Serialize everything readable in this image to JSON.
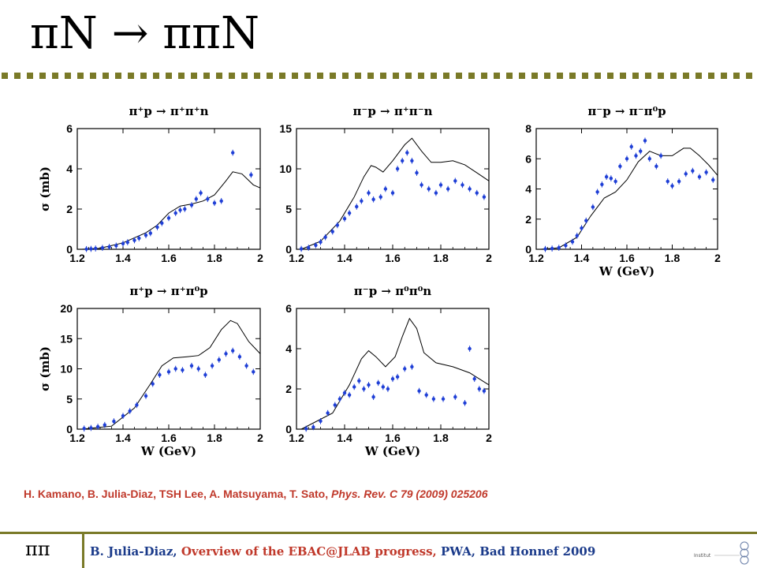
{
  "slide": {
    "title": "πN  →  ππN",
    "citation_authors": "H. Kamano, B. Julia-Diaz, TSH Lee, A. Matsuyama, T. Sato, ",
    "citation_journal": "Phys. Rev. C 79 (2009) 025206",
    "footer_symbol": "ππ",
    "footer_author": "B. Julia-Diaz, ",
    "footer_talk": "Overview of the EBAC@JLAB progress, ",
    "footer_venue": "PWA, Bad Honnef 2009",
    "logo_text": "Institut"
  },
  "colors": {
    "points": "#1f3fd6",
    "curve": "#000000",
    "rule": "#7a7a28"
  },
  "chart_data": [
    {
      "type": "scatter",
      "title": "π⁺p → π⁺π⁺n",
      "xlabel": "",
      "ylabel": "σ (mb)",
      "xlim": [
        1.2,
        2.0
      ],
      "ylim": [
        0,
        6
      ],
      "xticks": [
        1.2,
        1.4,
        1.6,
        1.8,
        2.0
      ],
      "xticklabels": [
        "1.2",
        "1.4",
        "1.6",
        "1.8",
        "2"
      ],
      "yticks": [
        0,
        2,
        4,
        6
      ],
      "yticklabels": [
        "0",
        "2",
        "4",
        "6"
      ],
      "points": [
        [
          1.24,
          0.01
        ],
        [
          1.26,
          0.02
        ],
        [
          1.28,
          0.04
        ],
        [
          1.31,
          0.07
        ],
        [
          1.34,
          0.12
        ],
        [
          1.37,
          0.18
        ],
        [
          1.4,
          0.28
        ],
        [
          1.42,
          0.35
        ],
        [
          1.45,
          0.45
        ],
        [
          1.47,
          0.55
        ],
        [
          1.5,
          0.7
        ],
        [
          1.52,
          0.8
        ],
        [
          1.55,
          1.1
        ],
        [
          1.57,
          1.3
        ],
        [
          1.6,
          1.55
        ],
        [
          1.63,
          1.8
        ],
        [
          1.65,
          1.95
        ],
        [
          1.67,
          2.0
        ],
        [
          1.7,
          2.2
        ],
        [
          1.72,
          2.5
        ],
        [
          1.74,
          2.8
        ],
        [
          1.77,
          2.5
        ],
        [
          1.8,
          2.3
        ],
        [
          1.83,
          2.4
        ],
        [
          1.88,
          4.8
        ],
        [
          1.96,
          3.7
        ]
      ],
      "model": [
        [
          1.22,
          0.0
        ],
        [
          1.3,
          0.05
        ],
        [
          1.4,
          0.32
        ],
        [
          1.5,
          0.82
        ],
        [
          1.55,
          1.2
        ],
        [
          1.6,
          1.8
        ],
        [
          1.65,
          2.15
        ],
        [
          1.7,
          2.25
        ],
        [
          1.75,
          2.4
        ],
        [
          1.8,
          2.7
        ],
        [
          1.85,
          3.4
        ],
        [
          1.88,
          3.85
        ],
        [
          1.92,
          3.75
        ],
        [
          1.97,
          3.2
        ],
        [
          2.0,
          3.05
        ]
      ]
    },
    {
      "type": "scatter",
      "title": "π⁻p → π⁺π⁻n",
      "xlabel": "",
      "ylabel": "",
      "xlim": [
        1.2,
        2.0
      ],
      "ylim": [
        0,
        15
      ],
      "xticks": [
        1.2,
        1.4,
        1.6,
        1.8,
        2.0
      ],
      "xticklabels": [
        "1.2",
        "1.4",
        "1.6",
        "1.8",
        "2"
      ],
      "yticks": [
        0,
        5,
        10,
        15
      ],
      "yticklabels": [
        "0",
        "5",
        "10",
        "15"
      ],
      "points": [
        [
          1.22,
          0.05
        ],
        [
          1.25,
          0.2
        ],
        [
          1.28,
          0.5
        ],
        [
          1.3,
          0.9
        ],
        [
          1.32,
          1.5
        ],
        [
          1.35,
          2.2
        ],
        [
          1.37,
          3.0
        ],
        [
          1.4,
          3.8
        ],
        [
          1.42,
          4.5
        ],
        [
          1.45,
          5.3
        ],
        [
          1.47,
          6.0
        ],
        [
          1.5,
          7.0
        ],
        [
          1.52,
          6.2
        ],
        [
          1.55,
          6.5
        ],
        [
          1.57,
          7.5
        ],
        [
          1.6,
          7.0
        ],
        [
          1.62,
          10.0
        ],
        [
          1.64,
          11.0
        ],
        [
          1.66,
          12.0
        ],
        [
          1.68,
          11.0
        ],
        [
          1.7,
          9.5
        ],
        [
          1.72,
          8.0
        ],
        [
          1.75,
          7.5
        ],
        [
          1.78,
          7.0
        ],
        [
          1.8,
          8.0
        ],
        [
          1.83,
          7.5
        ],
        [
          1.86,
          8.5
        ],
        [
          1.89,
          8.0
        ],
        [
          1.92,
          7.5
        ],
        [
          1.95,
          7.0
        ],
        [
          1.98,
          6.5
        ]
      ],
      "model": [
        [
          1.22,
          0.0
        ],
        [
          1.3,
          1.0
        ],
        [
          1.38,
          3.5
        ],
        [
          1.44,
          6.5
        ],
        [
          1.48,
          9.0
        ],
        [
          1.51,
          10.4
        ],
        [
          1.53,
          10.2
        ],
        [
          1.56,
          9.6
        ],
        [
          1.6,
          11.0
        ],
        [
          1.65,
          13.0
        ],
        [
          1.68,
          13.8
        ],
        [
          1.72,
          12.2
        ],
        [
          1.76,
          10.8
        ],
        [
          1.8,
          10.8
        ],
        [
          1.85,
          11.0
        ],
        [
          1.9,
          10.5
        ],
        [
          1.95,
          9.5
        ],
        [
          2.0,
          8.5
        ]
      ]
    },
    {
      "type": "scatter",
      "title": "π⁻p → π⁻π⁰p",
      "xlabel": "W (GeV)",
      "ylabel": "",
      "xlim": [
        1.2,
        2.0
      ],
      "ylim": [
        0,
        8
      ],
      "xticks": [
        1.2,
        1.4,
        1.6,
        1.8,
        2.0
      ],
      "xticklabels": [
        "1.2",
        "1.4",
        "1.6",
        "1.8",
        "2"
      ],
      "yticks": [
        0,
        2,
        4,
        6,
        8
      ],
      "yticklabels": [
        "0",
        "2",
        "4",
        "6",
        "8"
      ],
      "points": [
        [
          1.24,
          0.02
        ],
        [
          1.27,
          0.05
        ],
        [
          1.3,
          0.1
        ],
        [
          1.33,
          0.25
        ],
        [
          1.36,
          0.5
        ],
        [
          1.38,
          0.9
        ],
        [
          1.4,
          1.4
        ],
        [
          1.42,
          1.9
        ],
        [
          1.45,
          2.8
        ],
        [
          1.47,
          3.8
        ],
        [
          1.49,
          4.3
        ],
        [
          1.51,
          4.8
        ],
        [
          1.53,
          4.7
        ],
        [
          1.55,
          4.5
        ],
        [
          1.57,
          5.5
        ],
        [
          1.6,
          6.0
        ],
        [
          1.62,
          6.8
        ],
        [
          1.64,
          6.2
        ],
        [
          1.66,
          6.5
        ],
        [
          1.68,
          7.2
        ],
        [
          1.7,
          6.0
        ],
        [
          1.73,
          5.5
        ],
        [
          1.75,
          6.2
        ],
        [
          1.78,
          4.5
        ],
        [
          1.8,
          4.2
        ],
        [
          1.83,
          4.5
        ],
        [
          1.86,
          5.0
        ],
        [
          1.89,
          5.2
        ],
        [
          1.92,
          4.8
        ],
        [
          1.95,
          5.1
        ],
        [
          1.98,
          4.6
        ]
      ],
      "model": [
        [
          1.22,
          0.0
        ],
        [
          1.3,
          0.1
        ],
        [
          1.38,
          0.8
        ],
        [
          1.44,
          2.2
        ],
        [
          1.5,
          3.4
        ],
        [
          1.55,
          3.8
        ],
        [
          1.6,
          4.6
        ],
        [
          1.65,
          5.8
        ],
        [
          1.7,
          6.5
        ],
        [
          1.75,
          6.2
        ],
        [
          1.8,
          6.2
        ],
        [
          1.85,
          6.7
        ],
        [
          1.88,
          6.7
        ],
        [
          1.92,
          6.2
        ],
        [
          1.96,
          5.6
        ],
        [
          2.0,
          4.9
        ]
      ]
    },
    {
      "type": "scatter",
      "title": "π⁺p → π⁺π⁰p",
      "xlabel": "W (GeV)",
      "ylabel": "σ (mb)",
      "xlim": [
        1.2,
        2.0
      ],
      "ylim": [
        0,
        20
      ],
      "xticks": [
        1.2,
        1.4,
        1.6,
        1.8,
        2.0
      ],
      "xticklabels": [
        "1.2",
        "1.4",
        "1.6",
        "1.8",
        "2"
      ],
      "yticks": [
        0,
        5,
        10,
        15,
        20
      ],
      "yticklabels": [
        "0",
        "5",
        "10",
        "15",
        "20"
      ],
      "points": [
        [
          1.23,
          0.1
        ],
        [
          1.26,
          0.2
        ],
        [
          1.29,
          0.4
        ],
        [
          1.32,
          0.7
        ],
        [
          1.36,
          1.3
        ],
        [
          1.4,
          2.2
        ],
        [
          1.43,
          3.0
        ],
        [
          1.46,
          4.0
        ],
        [
          1.5,
          5.5
        ],
        [
          1.53,
          7.5
        ],
        [
          1.56,
          9.0
        ],
        [
          1.6,
          9.5
        ],
        [
          1.63,
          10.0
        ],
        [
          1.66,
          9.8
        ],
        [
          1.7,
          10.5
        ],
        [
          1.73,
          10.0
        ],
        [
          1.76,
          9.0
        ],
        [
          1.79,
          10.5
        ],
        [
          1.82,
          11.5
        ],
        [
          1.85,
          12.5
        ],
        [
          1.88,
          13.0
        ],
        [
          1.91,
          12.0
        ],
        [
          1.94,
          10.5
        ],
        [
          1.97,
          9.5
        ]
      ],
      "model": [
        [
          1.22,
          0.0
        ],
        [
          1.35,
          0.5
        ],
        [
          1.45,
          3.5
        ],
        [
          1.52,
          7.5
        ],
        [
          1.57,
          10.5
        ],
        [
          1.62,
          11.8
        ],
        [
          1.68,
          12.0
        ],
        [
          1.73,
          12.2
        ],
        [
          1.78,
          13.5
        ],
        [
          1.83,
          16.5
        ],
        [
          1.87,
          18.0
        ],
        [
          1.9,
          17.5
        ],
        [
          1.95,
          14.5
        ],
        [
          2.0,
          12.5
        ]
      ]
    },
    {
      "type": "scatter",
      "title": "π⁻p → π⁰π⁰n",
      "xlabel": "W (GeV)",
      "ylabel": "",
      "xlim": [
        1.2,
        2.0
      ],
      "ylim": [
        0,
        6
      ],
      "xticks": [
        1.2,
        1.4,
        1.6,
        1.8,
        2.0
      ],
      "xticklabels": [
        "1.2",
        "1.4",
        "1.6",
        "1.8",
        "2"
      ],
      "yticks": [
        0,
        2,
        4,
        6
      ],
      "yticklabels": [
        "0",
        "2",
        "4",
        "6"
      ],
      "points": [
        [
          1.24,
          0.02
        ],
        [
          1.27,
          0.1
        ],
        [
          1.3,
          0.4
        ],
        [
          1.33,
          0.8
        ],
        [
          1.36,
          1.2
        ],
        [
          1.38,
          1.5
        ],
        [
          1.4,
          1.8
        ],
        [
          1.42,
          1.7
        ],
        [
          1.44,
          2.1
        ],
        [
          1.46,
          2.4
        ],
        [
          1.48,
          2.0
        ],
        [
          1.5,
          2.2
        ],
        [
          1.52,
          1.6
        ],
        [
          1.54,
          2.3
        ],
        [
          1.56,
          2.1
        ],
        [
          1.58,
          2.0
        ],
        [
          1.6,
          2.5
        ],
        [
          1.62,
          2.6
        ],
        [
          1.65,
          3.0
        ],
        [
          1.68,
          3.1
        ],
        [
          1.71,
          1.9
        ],
        [
          1.74,
          1.7
        ],
        [
          1.77,
          1.5
        ],
        [
          1.81,
          1.5
        ],
        [
          1.86,
          1.6
        ],
        [
          1.9,
          1.3
        ],
        [
          1.92,
          4.0
        ],
        [
          1.94,
          2.5
        ],
        [
          1.96,
          2.0
        ],
        [
          1.98,
          1.9
        ]
      ],
      "model": [
        [
          1.22,
          0.0
        ],
        [
          1.35,
          0.8
        ],
        [
          1.42,
          2.2
        ],
        [
          1.47,
          3.5
        ],
        [
          1.5,
          3.9
        ],
        [
          1.53,
          3.6
        ],
        [
          1.57,
          3.1
        ],
        [
          1.61,
          3.6
        ],
        [
          1.64,
          4.6
        ],
        [
          1.67,
          5.5
        ],
        [
          1.7,
          5.0
        ],
        [
          1.73,
          3.8
        ],
        [
          1.78,
          3.3
        ],
        [
          1.85,
          3.1
        ],
        [
          1.92,
          2.8
        ],
        [
          2.0,
          2.2
        ]
      ]
    }
  ]
}
